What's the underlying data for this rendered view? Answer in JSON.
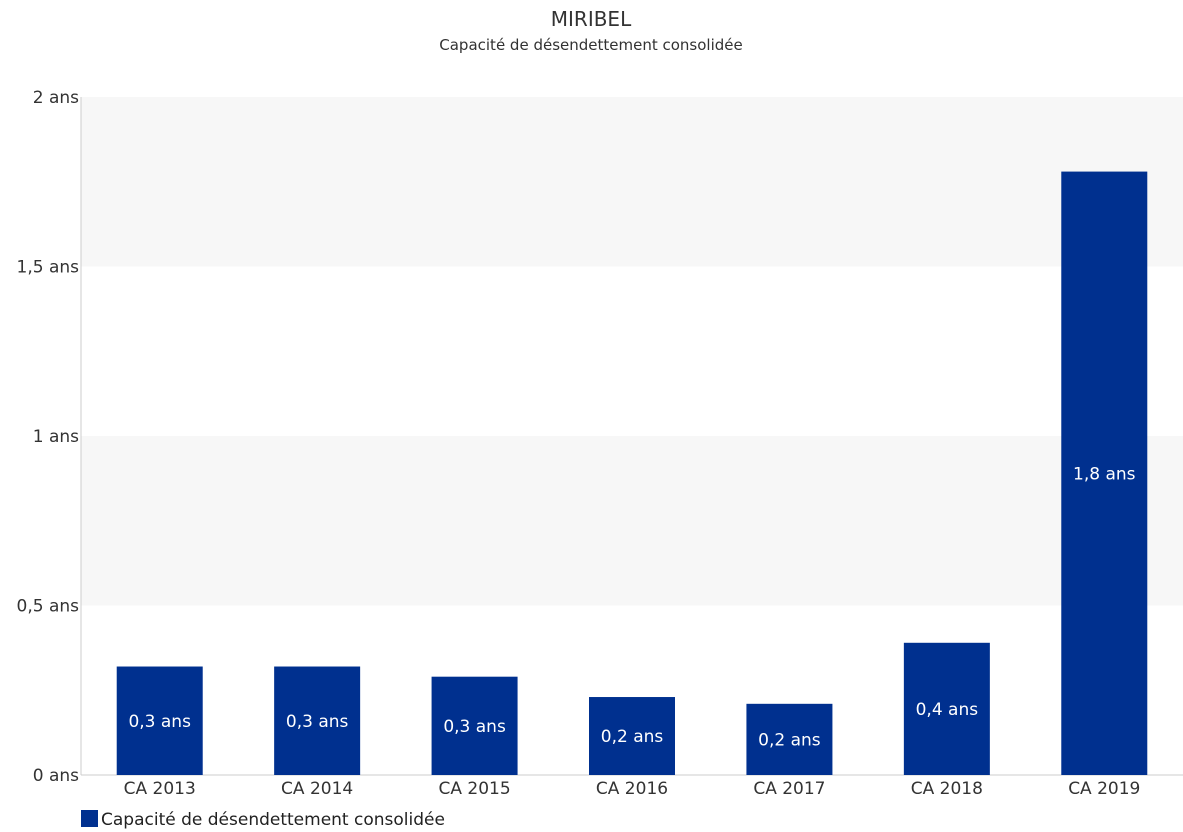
{
  "chart_data": {
    "type": "bar",
    "title": "MIRIBEL",
    "subtitle": "Capacité de désendettement consolidée",
    "categories": [
      "CA 2013",
      "CA 2014",
      "CA 2015",
      "CA 2016",
      "CA 2017",
      "CA 2018",
      "CA 2019"
    ],
    "series": [
      {
        "name": "Capacité de désendettement consolidée",
        "color": "#00308f",
        "values": [
          0.32,
          0.32,
          0.29,
          0.23,
          0.21,
          0.39,
          1.78
        ],
        "data_labels": [
          "0,3 ans",
          "0,3 ans",
          "0,3 ans",
          "0,2 ans",
          "0,2 ans",
          "0,4 ans",
          "1,8 ans"
        ]
      }
    ],
    "ylim": [
      0,
      2
    ],
    "yticks": [
      0,
      0.5,
      1,
      1.5,
      2
    ],
    "ytick_labels": [
      "0 ans",
      "0,5 ans",
      "1 ans",
      "1,5 ans",
      "2 ans"
    ],
    "xlabel": "",
    "ylabel": "",
    "grid": "alternating horizontal bands",
    "band_color": "#f7f7f7",
    "legend": "bottom-left"
  }
}
